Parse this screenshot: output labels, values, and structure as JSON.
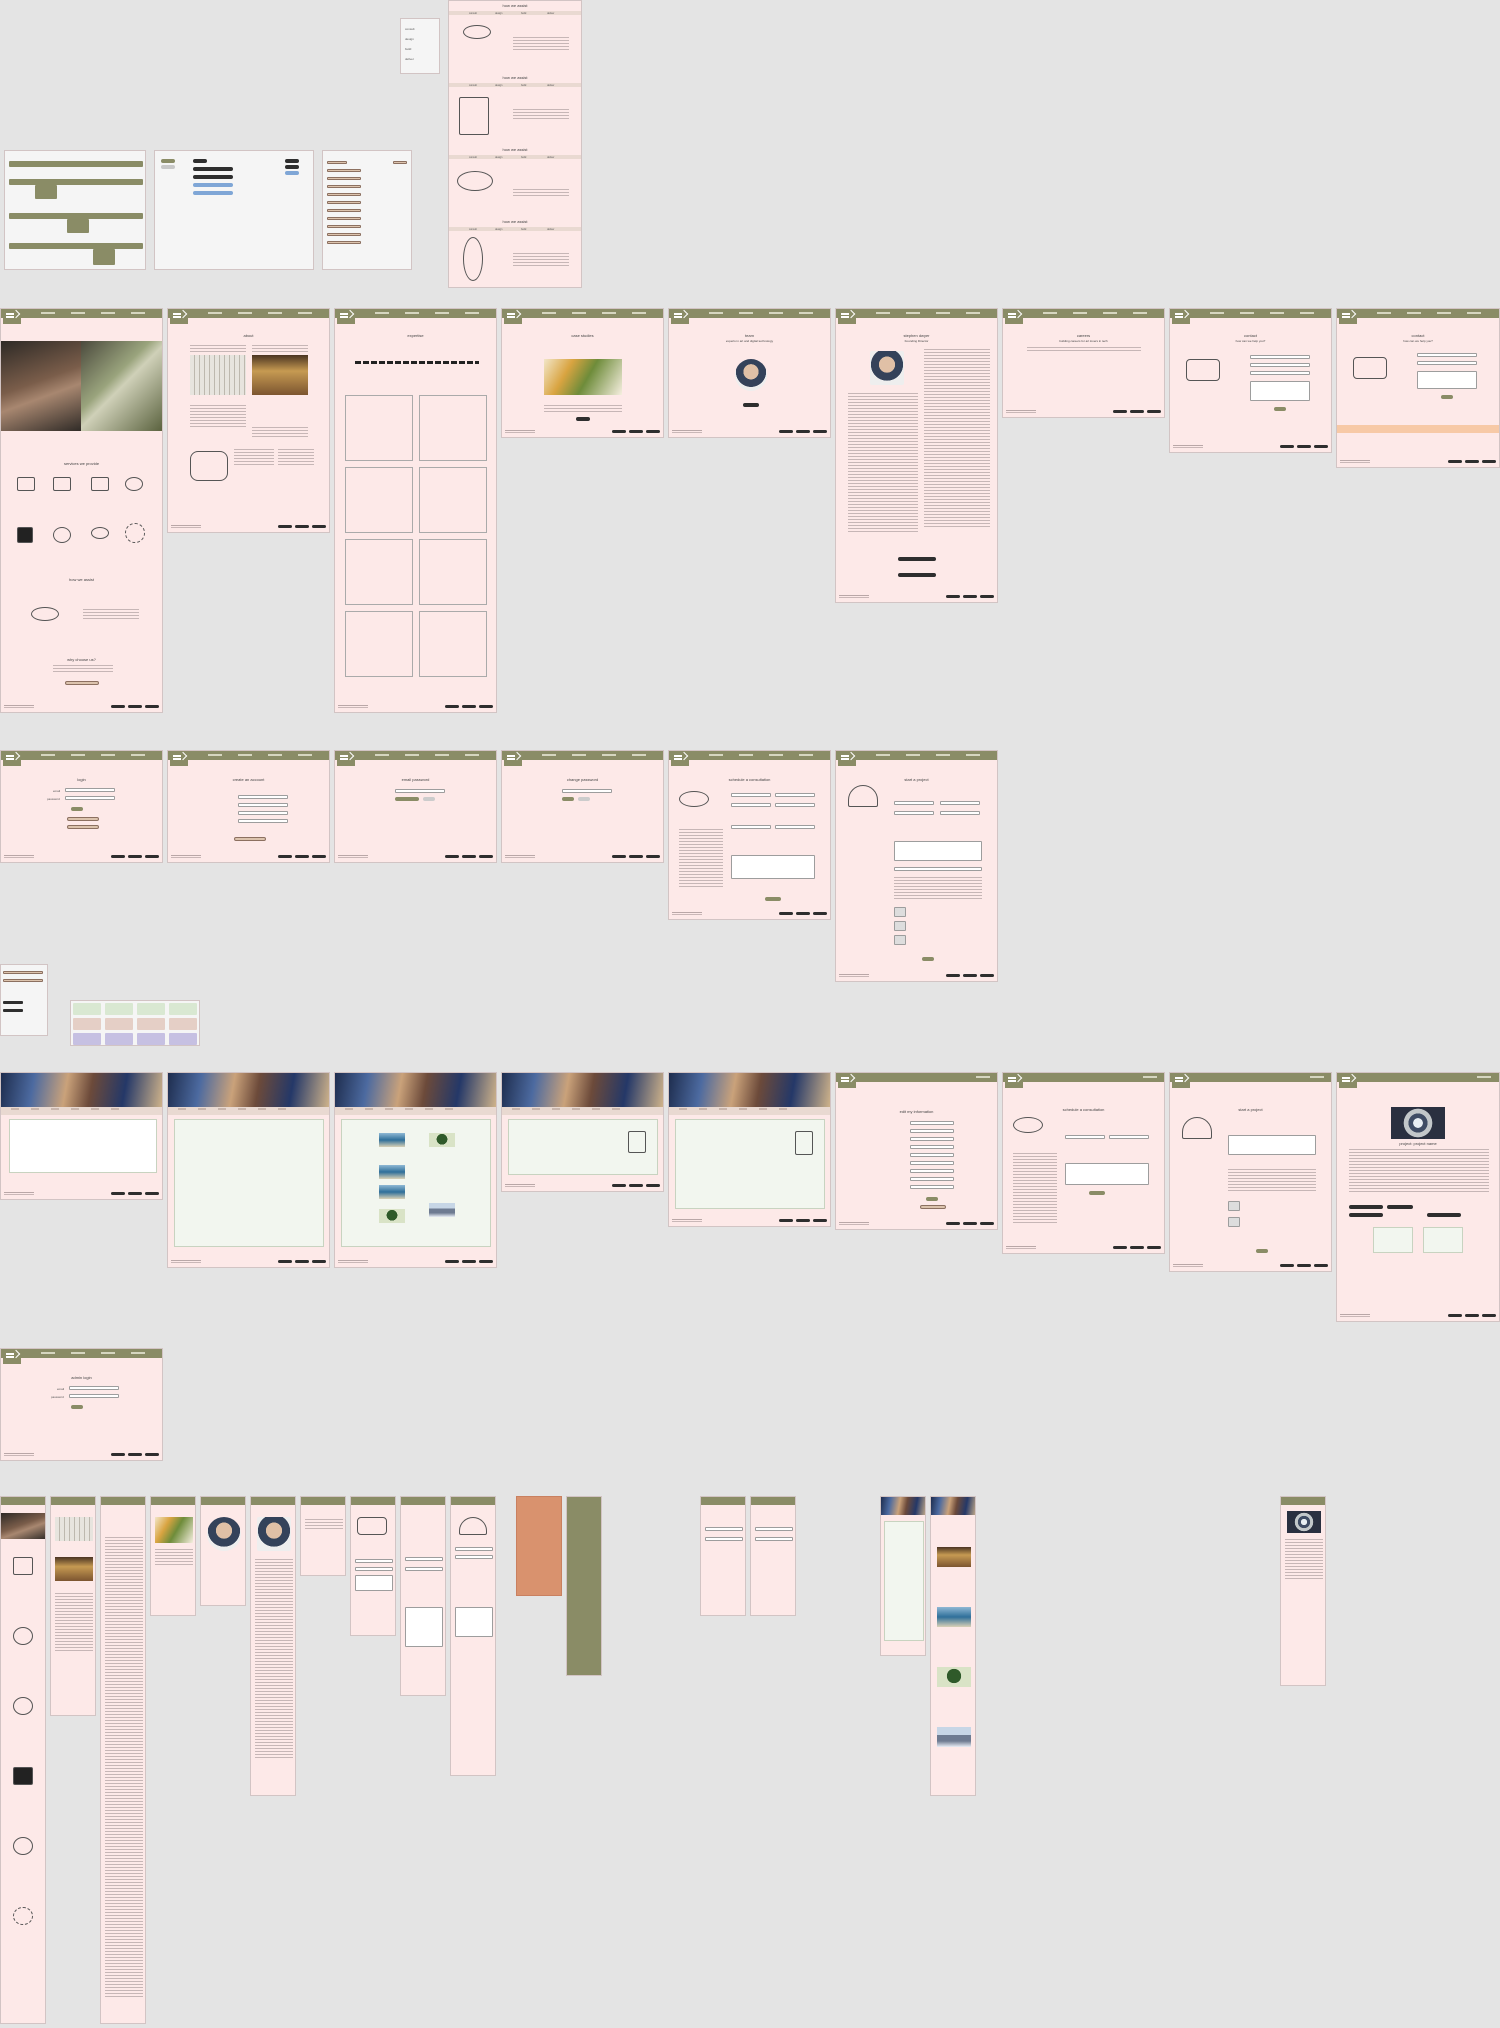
{
  "canvas": {
    "background": "#e4e4e4",
    "accent_color": "#8a8c66",
    "page_color": "#fde9e8",
    "button_color": "#2e2e2e"
  },
  "hero_frames": {
    "we_can_help_title": "how we assist",
    "tabs": [
      "consult",
      "design",
      "build",
      "deliver"
    ]
  },
  "row1": {
    "home": {
      "section_title": "services we provide",
      "why_title": "why choose us?",
      "cta": "Work with us"
    },
    "about": {
      "title": "about"
    },
    "timeline": {
      "title": "expertise"
    },
    "case_study": {
      "title": "case studies"
    },
    "team": {
      "title": "team",
      "subtitle": "experts in art and digital technology"
    },
    "founder": {
      "title": "stephen dwyer",
      "subtitle": "Founding Director"
    },
    "careers": {
      "title": "careers",
      "subtitle": "building careers for art lovers in tech"
    },
    "contact": {
      "title": "contact",
      "subtitle": "how can we help you?"
    },
    "contact_sent": {
      "title": "contact",
      "subtitle": "how can we help you?"
    }
  },
  "row2": {
    "login": {
      "title": "login",
      "email_label": "email",
      "password_label": "password"
    },
    "create_account": {
      "title": "create an account"
    },
    "email_password": {
      "title": "email password"
    },
    "change_password": {
      "title": "change password"
    },
    "schedule": {
      "title": "schedule a consultation"
    },
    "start_project": {
      "title": "start a project"
    }
  },
  "row3": {
    "edit_info": {
      "title": "edit my information"
    },
    "schedule": {
      "title": "schedule a consultation"
    },
    "start_project": {
      "title": "start a project"
    },
    "project": {
      "title": "project: project name"
    }
  },
  "row4": {
    "admin_login": {
      "title": "admin login",
      "email_label": "email",
      "password_label": "password"
    }
  }
}
